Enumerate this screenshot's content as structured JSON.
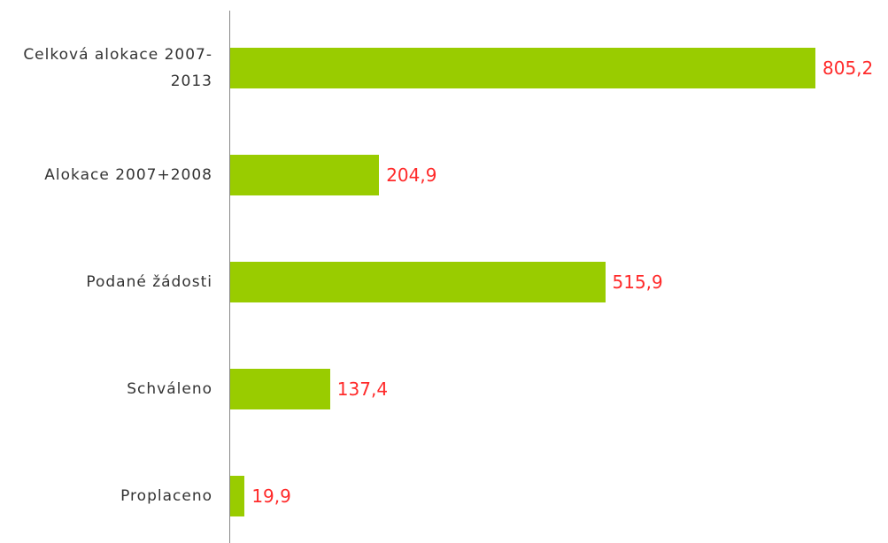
{
  "chart_data": {
    "type": "bar",
    "orientation": "horizontal",
    "categories": [
      "Celková alokace 2007-2013",
      "Alokace 2007+2008",
      "Podané žádosti",
      "Schváleno",
      "Proplaceno"
    ],
    "values": [
      805.2,
      204.9,
      515.9,
      137.4,
      19.9
    ],
    "value_labels": [
      "805,2",
      "204,9",
      "515,9",
      "137,4",
      "19,9"
    ],
    "color": "#99cc00",
    "label_color": "#ff2a2a"
  }
}
